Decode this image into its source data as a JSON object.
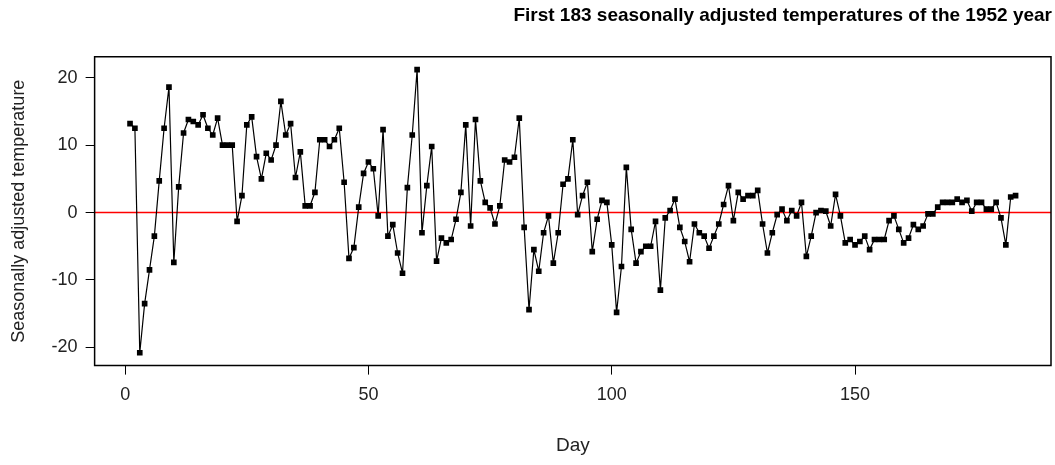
{
  "chart_data": {
    "type": "line",
    "title": "First 183 seasonally adjusted temperatures of the 1952 year",
    "xlabel": "Day",
    "ylabel": "Seasonally adjusted temperature",
    "x": [
      1,
      2,
      3,
      4,
      5,
      6,
      7,
      8,
      9,
      10,
      11,
      12,
      13,
      14,
      15,
      16,
      17,
      18,
      19,
      20,
      21,
      22,
      23,
      24,
      25,
      26,
      27,
      28,
      29,
      30,
      31,
      32,
      33,
      34,
      35,
      36,
      37,
      38,
      39,
      40,
      41,
      42,
      43,
      44,
      45,
      46,
      47,
      48,
      49,
      50,
      51,
      52,
      53,
      54,
      55,
      56,
      57,
      58,
      59,
      60,
      61,
      62,
      63,
      64,
      65,
      66,
      67,
      68,
      69,
      70,
      71,
      72,
      73,
      74,
      75,
      76,
      77,
      78,
      79,
      80,
      81,
      82,
      83,
      84,
      85,
      86,
      87,
      88,
      89,
      90,
      91,
      92,
      93,
      94,
      95,
      96,
      97,
      98,
      99,
      100,
      101,
      102,
      103,
      104,
      105,
      106,
      107,
      108,
      109,
      110,
      111,
      112,
      113,
      114,
      115,
      116,
      117,
      118,
      119,
      120,
      121,
      122,
      123,
      124,
      125,
      126,
      127,
      128,
      129,
      130,
      131,
      132,
      133,
      134,
      135,
      136,
      137,
      138,
      139,
      140,
      141,
      142,
      143,
      144,
      145,
      146,
      147,
      148,
      149,
      150,
      151,
      152,
      153,
      154,
      155,
      156,
      157,
      158,
      159,
      160,
      161,
      162,
      163,
      164,
      165,
      166,
      167,
      168,
      169,
      170,
      171,
      172,
      173,
      174,
      175,
      176,
      177,
      178,
      179,
      180,
      181,
      182,
      183
    ],
    "values": [
      13.2,
      12.5,
      -20.8,
      -13.5,
      -8.5,
      -3.5,
      4.7,
      12.5,
      18.6,
      -7.4,
      3.8,
      11.8,
      13.8,
      13.5,
      13,
      14.5,
      12.5,
      11.5,
      14,
      10,
      10,
      10,
      -1.3,
      2.5,
      13,
      14.2,
      8.3,
      5,
      8.8,
      7.8,
      10,
      16.5,
      11.5,
      13.2,
      5.2,
      9,
      1,
      1,
      3,
      10.8,
      10.8,
      9.8,
      10.8,
      12.5,
      4.5,
      -6.8,
      -5.2,
      0.8,
      5.8,
      7.5,
      6.5,
      -0.5,
      12.3,
      -3.5,
      -1.8,
      -6,
      -9,
      3.7,
      11.5,
      21.2,
      -3,
      4,
      9.8,
      -7.2,
      -3.8,
      -4.5,
      -4,
      -1,
      3,
      13,
      -2,
      13.8,
      4.7,
      1.5,
      0.7,
      -1.7,
      1,
      7.8,
      7.5,
      8.2,
      14,
      -2.2,
      -14.4,
      -5.5,
      -8.7,
      -3,
      -0.5,
      -7.5,
      -3,
      4.2,
      5,
      10.8,
      -0.3,
      2.5,
      4.5,
      -5.8,
      -1,
      1.8,
      1.5,
      -4.8,
      -14.8,
      -8,
      6.7,
      -2.5,
      -7.5,
      -5.8,
      -5,
      -5,
      -1.3,
      -11.5,
      -0.8,
      0.3,
      2,
      -2.2,
      -4.3,
      -7.3,
      -1.7,
      -3,
      -3.5,
      -5.3,
      -3.5,
      -1.7,
      1.2,
      4,
      -1.2,
      3,
      2,
      2.5,
      2.5,
      3.3,
      -1.7,
      -6,
      -3,
      -0.3,
      0.5,
      -1.2,
      0.3,
      -0.5,
      1.5,
      -6.5,
      -3.5,
      0,
      0.3,
      0.2,
      -2,
      2.7,
      -0.5,
      -4.5,
      -4,
      -4.8,
      -4.3,
      -3.5,
      -5.5,
      -4,
      -4,
      -4,
      -1.2,
      -0.5,
      -2.5,
      -4.5,
      -3.8,
      -1.8,
      -2.5,
      -2,
      -0.2,
      -0.2,
      0.8,
      1.5,
      1.5,
      1.5,
      2,
      1.5,
      1.8,
      0.2,
      1.5,
      1.5,
      0.5,
      0.5,
      1.5,
      -0.8,
      -4.8,
      2.3,
      2.5
    ],
    "color": "#000000",
    "marker": "square",
    "line_style": "solid",
    "xlim": [
      -6.28,
      190.28
    ],
    "xticks": [
      0,
      50,
      100,
      150
    ],
    "ylim": [
      -22.7,
      23.1
    ],
    "yticks": [
      -20,
      -10,
      0,
      10,
      20
    ],
    "grid": false,
    "legend": false,
    "ref_lines": [
      {
        "axis": "y",
        "value": 0,
        "color": "#ff0000"
      }
    ]
  }
}
